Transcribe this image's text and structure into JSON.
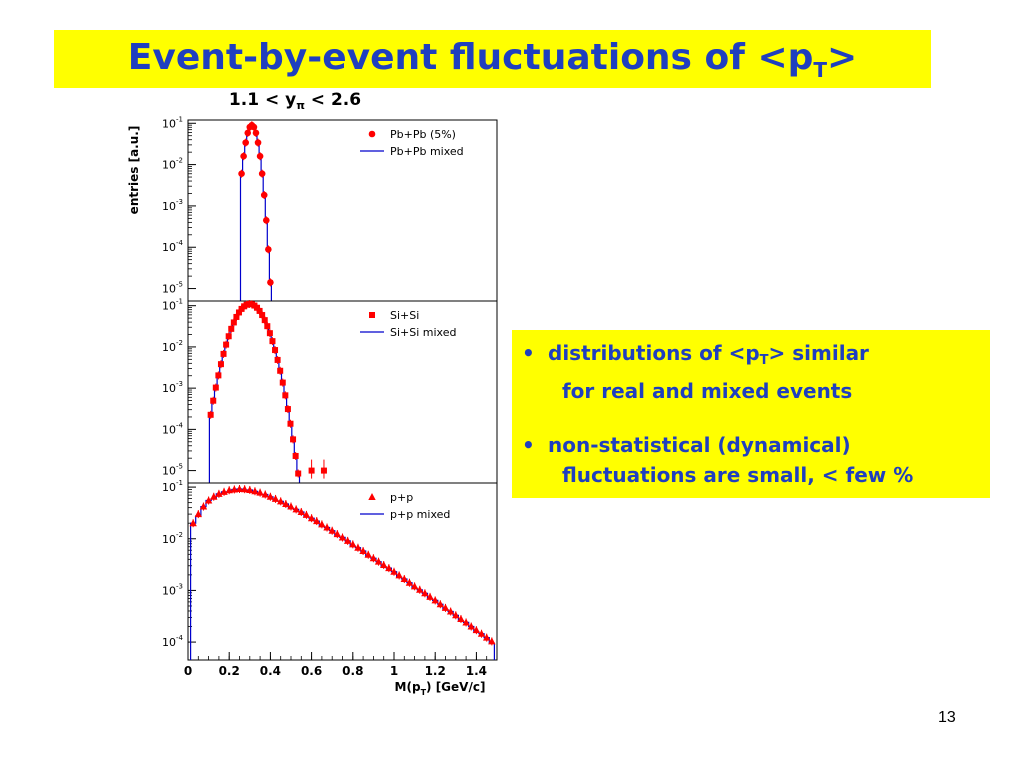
{
  "title": {
    "main": "Event-by-event fluctuations of <p",
    "sub": "T",
    "end": ">"
  },
  "rapidity": {
    "pre": "1.1 < y",
    "sub": "π",
    "post": " < 2.6"
  },
  "bullets": [
    {
      "marker": "•",
      "line1a": "distributions of <p",
      "line1sub": "T",
      "line1b": "> similar",
      "line2": "for real and mixed events"
    },
    {
      "marker": "•",
      "line1a": "non-statistical (dynamical)",
      "line1sub": "",
      "line1b": "",
      "line2": "fluctuations are small, < few %"
    }
  ],
  "page_number": "13",
  "colors": {
    "title": "#1f3fbf",
    "banner": "#ffff00",
    "data": "#ff0000",
    "mixed": "#0000cc"
  },
  "chart_data": [
    {
      "type": "scatter",
      "name": "Pb+Pb",
      "ylabel": "entries [a.u.]",
      "yscale": "log",
      "xlim": [
        0,
        1.5
      ],
      "ylim": [
        5e-06,
        0.12
      ],
      "yticks": [
        {
          "mant": "10",
          "exp": "-5",
          "value": 1e-05
        },
        {
          "mant": "10",
          "exp": "-4",
          "value": 0.0001
        },
        {
          "mant": "10",
          "exp": "-3",
          "value": 0.001
        },
        {
          "mant": "10",
          "exp": "-2",
          "value": 0.01
        },
        {
          "mant": "10",
          "exp": "-1",
          "value": 0.1
        }
      ],
      "legend": [
        {
          "label": "Pb+Pb (5%)",
          "kind": "data",
          "marker": "circle"
        },
        {
          "label": "Pb+Pb mixed",
          "kind": "line"
        }
      ],
      "gauss": {
        "mean": 0.31,
        "sigma": 0.0215,
        "peak": 0.09
      },
      "x_range": [
        0.26,
        0.4
      ],
      "bin_width": 0.01
    },
    {
      "type": "scatter",
      "name": "Si+Si",
      "yscale": "log",
      "xlim": [
        0,
        1.5
      ],
      "ylim": [
        5e-06,
        0.13
      ],
      "yticks": [
        {
          "mant": "10",
          "exp": "-5",
          "value": 1e-05
        },
        {
          "mant": "10",
          "exp": "-4",
          "value": 0.0001
        },
        {
          "mant": "10",
          "exp": "-3",
          "value": 0.001
        },
        {
          "mant": "10",
          "exp": "-2",
          "value": 0.01
        },
        {
          "mant": "10",
          "exp": "-1",
          "value": 0.1
        }
      ],
      "legend": [
        {
          "label": "Si+Si",
          "kind": "data",
          "marker": "square"
        },
        {
          "label": "Si+Si mixed",
          "kind": "line"
        }
      ],
      "gauss": {
        "mean": 0.3,
        "sigma": 0.054,
        "peak": 0.11
      },
      "x_range": [
        0.11,
        0.56
      ],
      "bin_width": 0.0125,
      "outliers": [
        {
          "x": 0.6,
          "y": 1e-05
        },
        {
          "x": 0.66,
          "y": 1e-05
        }
      ]
    },
    {
      "type": "scatter",
      "name": "p+p",
      "yscale": "log",
      "xlim": [
        0,
        1.5
      ],
      "ylim": [
        4.5e-05,
        0.12
      ],
      "xlabel_text": "M(p",
      "xlabel_sub": "T",
      "xlabel_end": ") [GeV/c]",
      "xticks": [
        {
          "label": "0",
          "value": 0
        },
        {
          "label": "0.2",
          "value": 0.2
        },
        {
          "label": "0.4",
          "value": 0.4
        },
        {
          "label": "0.6",
          "value": 0.6
        },
        {
          "label": "0.8",
          "value": 0.8
        },
        {
          "label": "1",
          "value": 1.0
        },
        {
          "label": "1.2",
          "value": 1.2
        },
        {
          "label": "1.4",
          "value": 1.4
        }
      ],
      "yticks": [
        {
          "mant": "10",
          "exp": "-4",
          "value": 0.0001
        },
        {
          "mant": "10",
          "exp": "-3",
          "value": 0.001
        },
        {
          "mant": "10",
          "exp": "-2",
          "value": 0.01
        },
        {
          "mant": "10",
          "exp": "-1",
          "value": 0.1
        }
      ],
      "legend": [
        {
          "label": "p+p",
          "kind": "data",
          "marker": "triangle"
        },
        {
          "label": "p+p mixed",
          "kind": "line"
        }
      ],
      "points": [
        [
          0.025,
          0.02
        ],
        [
          0.05,
          0.03
        ],
        [
          0.075,
          0.042
        ],
        [
          0.1,
          0.055
        ],
        [
          0.125,
          0.065
        ],
        [
          0.15,
          0.074
        ],
        [
          0.175,
          0.081
        ],
        [
          0.2,
          0.087
        ],
        [
          0.225,
          0.09
        ],
        [
          0.25,
          0.092
        ],
        [
          0.275,
          0.091
        ],
        [
          0.3,
          0.088
        ],
        [
          0.325,
          0.083
        ],
        [
          0.35,
          0.078
        ],
        [
          0.375,
          0.072
        ],
        [
          0.4,
          0.065
        ],
        [
          0.425,
          0.059
        ],
        [
          0.45,
          0.053
        ],
        [
          0.475,
          0.047
        ],
        [
          0.5,
          0.042
        ],
        [
          0.525,
          0.037
        ],
        [
          0.55,
          0.033
        ],
        [
          0.575,
          0.029
        ],
        [
          0.6,
          0.025
        ],
        [
          0.625,
          0.022
        ],
        [
          0.65,
          0.019
        ],
        [
          0.675,
          0.0165
        ],
        [
          0.7,
          0.0143
        ],
        [
          0.725,
          0.0123
        ],
        [
          0.75,
          0.0106
        ],
        [
          0.775,
          0.0091
        ],
        [
          0.8,
          0.0078
        ],
        [
          0.825,
          0.0067
        ],
        [
          0.85,
          0.0058
        ],
        [
          0.875,
          0.0049
        ],
        [
          0.9,
          0.0042
        ],
        [
          0.925,
          0.0036
        ],
        [
          0.95,
          0.0031
        ],
        [
          0.975,
          0.0027
        ],
        [
          1.0,
          0.0023
        ],
        [
          1.025,
          0.00195
        ],
        [
          1.05,
          0.00166
        ],
        [
          1.075,
          0.00141
        ],
        [
          1.1,
          0.0012
        ],
        [
          1.125,
          0.00103
        ],
        [
          1.15,
          0.00088
        ],
        [
          1.175,
          0.00075
        ],
        [
          1.2,
          0.00064
        ],
        [
          1.225,
          0.00054
        ],
        [
          1.25,
          0.00046
        ],
        [
          1.275,
          0.00039
        ],
        [
          1.3,
          0.00033
        ],
        [
          1.325,
          0.00028
        ],
        [
          1.35,
          0.00024
        ],
        [
          1.375,
          0.0002
        ],
        [
          1.4,
          0.00017
        ],
        [
          1.425,
          0.000145
        ],
        [
          1.45,
          0.000122
        ],
        [
          1.475,
          0.000103
        ]
      ],
      "bin_width": 0.025
    }
  ]
}
